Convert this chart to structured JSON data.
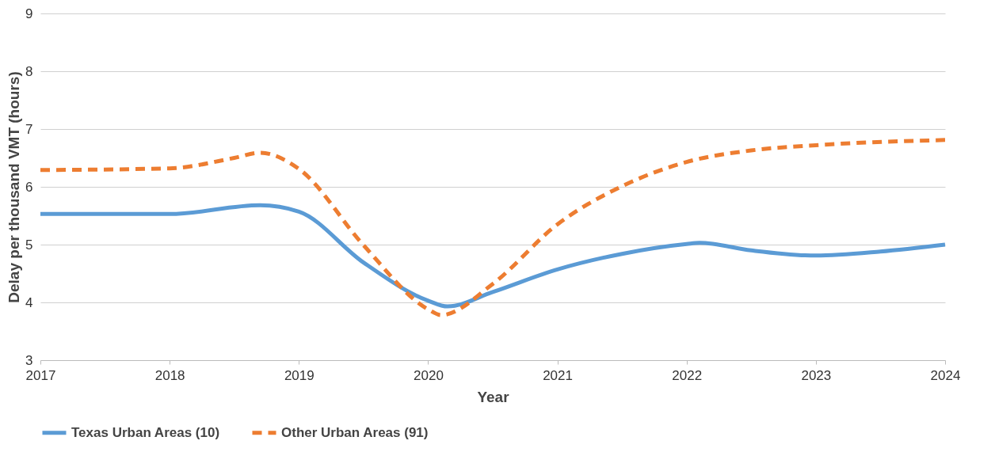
{
  "chart_data": {
    "type": "line",
    "xlabel": "Year",
    "ylabel": "Delay per thousand VMT (hours)",
    "xlim": [
      2017,
      2024
    ],
    "xticks": [
      2017,
      2018,
      2019,
      2020,
      2021,
      2022,
      2023,
      2024
    ],
    "ylim": [
      3,
      9
    ],
    "yticks": [
      3,
      4,
      5,
      6,
      7,
      8,
      9
    ],
    "grid": "y",
    "legend": "bottom",
    "marker": "none",
    "series": [
      {
        "name": "Texas Urban Areas (10)",
        "color": "#5b9bd5",
        "line_style": "solid",
        "x": [
          2017,
          2018,
          2018.7,
          2019,
          2019.5,
          2020,
          2020.15,
          2020.5,
          2021,
          2021.5,
          2022,
          2022.1,
          2022.5,
          2023,
          2023.5,
          2024
        ],
        "values": [
          5.53,
          5.53,
          5.68,
          5.57,
          4.69,
          4.03,
          3.93,
          4.18,
          4.57,
          4.84,
          5.01,
          5.03,
          4.9,
          4.81,
          4.88,
          5.0
        ]
      },
      {
        "name": "Other Urban Areas (91)",
        "color": "#ed7d31",
        "line_style": "dashed",
        "x": [
          2017,
          2018,
          2018.5,
          2018.7,
          2019,
          2019.5,
          2020,
          2020.1,
          2020.5,
          2021,
          2021.5,
          2022,
          2022.5,
          2023,
          2024
        ],
        "values": [
          6.29,
          6.32,
          6.5,
          6.59,
          6.31,
          4.99,
          3.88,
          3.78,
          4.32,
          5.35,
          6.01,
          6.43,
          6.63,
          6.72,
          6.81
        ]
      }
    ]
  }
}
